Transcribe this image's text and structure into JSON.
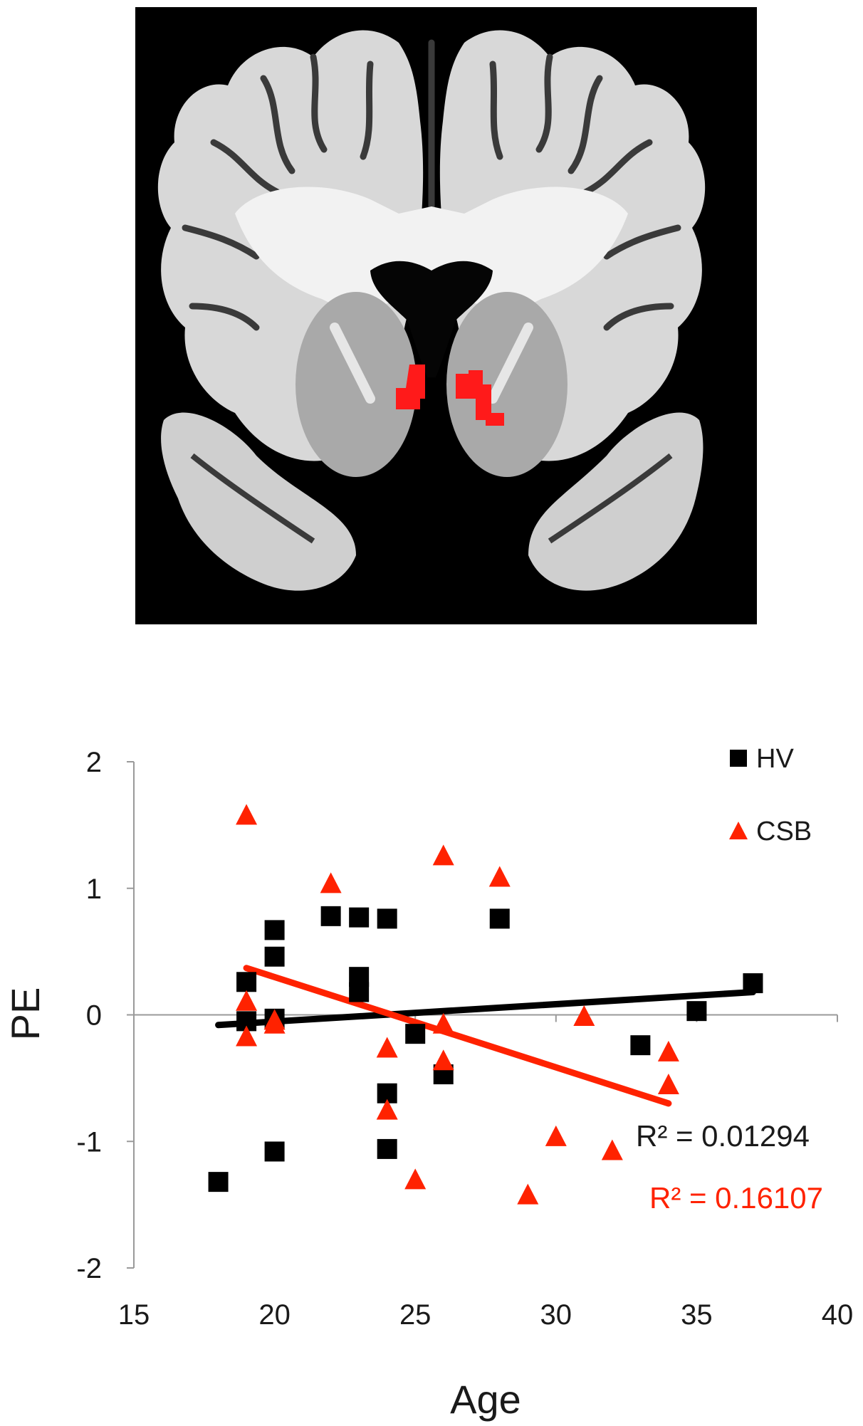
{
  "brain_panel": {
    "image": "coronal-brain-mri-slice",
    "highlight_color": "#ff1a1a",
    "background_color": "#000000"
  },
  "chart_data": {
    "type": "scatter",
    "xlabel": "Age",
    "ylabel": "PE",
    "xlim": [
      15,
      40
    ],
    "ylim": [
      -2,
      2
    ],
    "xticks": [
      15,
      20,
      25,
      30,
      35,
      40
    ],
    "yticks": [
      -2,
      -1,
      0,
      1,
      2
    ],
    "grid": false,
    "legend_position": "top-right",
    "series": [
      {
        "name": "HV",
        "marker": "square",
        "color": "#000000",
        "points": [
          [
            18,
            -1.32
          ],
          [
            19,
            0.26
          ],
          [
            19,
            -0.05
          ],
          [
            20,
            0.67
          ],
          [
            20,
            0.46
          ],
          [
            20,
            -0.03
          ],
          [
            20,
            -1.08
          ],
          [
            22,
            0.78
          ],
          [
            23,
            0.77
          ],
          [
            23,
            0.3
          ],
          [
            23,
            0.18
          ],
          [
            24,
            0.76
          ],
          [
            24,
            -0.62
          ],
          [
            24,
            -1.06
          ],
          [
            25,
            -0.15
          ],
          [
            26,
            -0.47
          ],
          [
            28,
            0.76
          ],
          [
            33,
            -0.24
          ],
          [
            35,
            0.03
          ],
          [
            37,
            0.25
          ]
        ],
        "trendline": {
          "x": [
            18,
            37
          ],
          "y": [
            -0.08,
            0.18
          ]
        },
        "r2_label": "R² = 0.01294"
      },
      {
        "name": "CSB",
        "marker": "triangle",
        "color": "#ff2200",
        "points": [
          [
            19,
            1.57
          ],
          [
            19,
            0.1
          ],
          [
            19,
            -0.18
          ],
          [
            20,
            -0.05
          ],
          [
            20,
            -0.08
          ],
          [
            22,
            1.03
          ],
          [
            24,
            -0.27
          ],
          [
            24,
            -0.76
          ],
          [
            25,
            -1.31
          ],
          [
            26,
            1.25
          ],
          [
            26,
            -0.37
          ],
          [
            26,
            -0.08
          ],
          [
            28,
            1.08
          ],
          [
            29,
            -1.43
          ],
          [
            30,
            -0.97
          ],
          [
            31,
            -0.02
          ],
          [
            32,
            -1.08
          ],
          [
            34,
            -0.3
          ],
          [
            34,
            -0.56
          ]
        ],
        "trendline": {
          "x": [
            19,
            34
          ],
          "y": [
            0.37,
            -0.7
          ]
        },
        "r2_label": "R² = 0.16107",
        "r2_color": "#ff2200"
      }
    ]
  }
}
